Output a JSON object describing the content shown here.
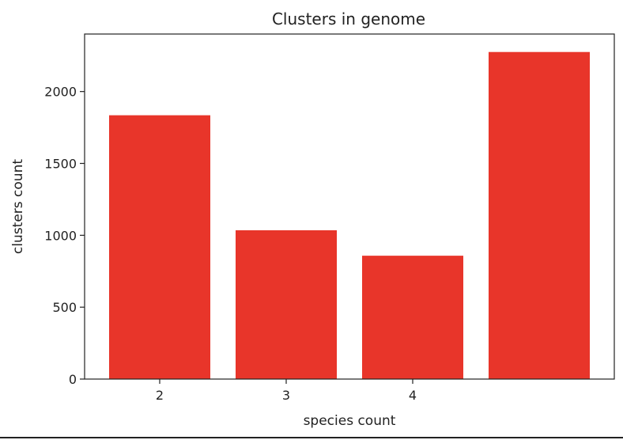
{
  "chart_data": {
    "type": "bar",
    "title": "Clusters in genome",
    "xlabel": "species count",
    "ylabel": "clusters count",
    "categories": [
      "2",
      "3",
      "4",
      ""
    ],
    "values": [
      1835,
      1035,
      858,
      2275
    ],
    "ylim": [
      0,
      2400
    ],
    "yticks": [
      0,
      500,
      1000,
      1500,
      2000
    ],
    "bar_color": "#e8352a",
    "grid": false,
    "legend": "none"
  }
}
